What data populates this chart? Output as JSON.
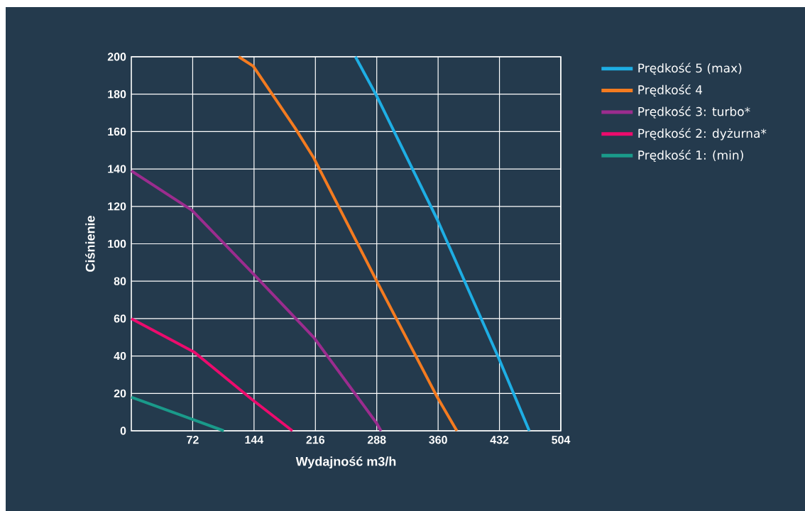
{
  "chart_data": {
    "type": "line",
    "xlabel": "Wydajność m3/h",
    "ylabel": "Ciśnienie",
    "xlim": [
      0,
      504
    ],
    "xticks": [
      72,
      144,
      216,
      288,
      360,
      432,
      504
    ],
    "ylim": [
      0,
      200
    ],
    "yticks": [
      0,
      20,
      40,
      60,
      80,
      100,
      120,
      140,
      160,
      180,
      200
    ],
    "grid": true,
    "legend": "top right",
    "marker": "none",
    "line_style": "solid",
    "series": [
      {
        "name": "Prędkość 5 (max)",
        "color": "#1eaee4",
        "x": [
          263,
          288,
          359,
          431,
          467
        ],
        "values": [
          200,
          179,
          113,
          39,
          0
        ]
      },
      {
        "name": "Prędkość 4",
        "color": "#f47b20",
        "x": [
          126,
          143,
          192,
          214,
          288,
          359,
          382
        ],
        "values": [
          200,
          195,
          162,
          146,
          80,
          18,
          0
        ]
      },
      {
        "name": "Prędkość 3: turbo*",
        "color": "#9b2c8e",
        "x": [
          0,
          71,
          141,
          214,
          288,
          293
        ],
        "values": [
          139,
          118,
          85,
          50,
          4,
          0
        ]
      },
      {
        "name": "Prędkość 2: dyżurna*",
        "color": "#ec0b6d",
        "x": [
          0,
          74,
          141,
          189
        ],
        "values": [
          60,
          42,
          17,
          0
        ]
      },
      {
        "name": "Prędkość 1: (min)",
        "color": "#1a9a8a",
        "x": [
          0,
          108.5
        ],
        "values": [
          18,
          0
        ]
      }
    ]
  }
}
